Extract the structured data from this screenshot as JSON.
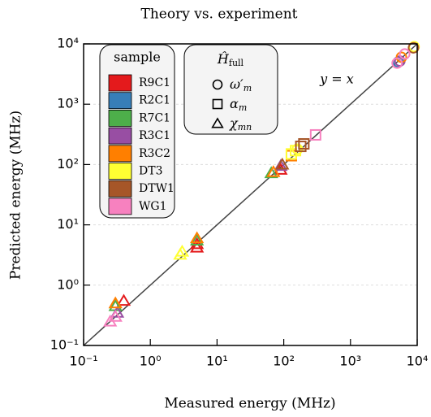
{
  "chart_data": {
    "type": "scatter",
    "title": "Theory vs. experiment",
    "x_label": "Measured energy (MHz)",
    "y_label": "Predicted energy (MHz)",
    "xlim": [
      0.1,
      10000
    ],
    "ylim": [
      0.1,
      10000
    ],
    "log_x": true,
    "log_y": true,
    "grid": true,
    "xticks": [
      {
        "value": 0.1,
        "label": "10⁻¹"
      },
      {
        "value": 1,
        "label": "10⁰"
      },
      {
        "value": 10,
        "label": "10¹"
      },
      {
        "value": 100,
        "label": "10²"
      },
      {
        "value": 1000,
        "label": "10³"
      },
      {
        "value": 10000,
        "label": "10⁴"
      }
    ],
    "yticks": [
      {
        "value": 0.1,
        "label": "10⁻¹"
      },
      {
        "value": 1,
        "label": "10⁰"
      },
      {
        "value": 10,
        "label": "10¹"
      },
      {
        "value": 100,
        "label": "10²"
      },
      {
        "value": 1000,
        "label": "10³"
      },
      {
        "value": 10000,
        "label": "10⁴"
      }
    ],
    "annotation": "y = x",
    "legend_title": "sample",
    "marker_legend": {
      "title": "Ĥ",
      "title_sub": "full",
      "items": [
        {
          "marker": "circle",
          "label": "ω′",
          "sub": "m"
        },
        {
          "marker": "square",
          "label": "α",
          "sub": "m"
        },
        {
          "marker": "triangle",
          "label": "χ",
          "sub": "mn"
        }
      ]
    },
    "series": [
      {
        "name": "R9C1",
        "color": "#e41a1c",
        "x": [
          0.4,
          5,
          90,
          5
        ],
        "values": [
          0.55,
          4.8,
          82,
          4.2
        ],
        "markers": [
          "triangle",
          "triangle",
          "triangle",
          "triangle"
        ]
      },
      {
        "name": "R2C1",
        "color": "#377eb8",
        "x": [
          5200
        ],
        "values": [
          5000
        ],
        "markers": [
          "circle"
        ]
      },
      {
        "name": "R7C1",
        "color": "#4daf4a",
        "x": [
          0.3,
          5,
          65
        ],
        "values": [
          0.45,
          5.5,
          72
        ],
        "markers": [
          "triangle",
          "triangle",
          "triangle"
        ]
      },
      {
        "name": "R3C1",
        "color": "#984ea3",
        "x": [
          5500,
          0.32,
          90
        ],
        "values": [
          5200,
          0.35,
          95
        ],
        "markers": [
          "circle",
          "triangle",
          "triangle"
        ]
      },
      {
        "name": "R3C2",
        "color": "#ff7f00",
        "x": [
          0.3,
          5,
          70,
          5800,
          130
        ],
        "values": [
          0.5,
          6,
          75,
          6000,
          140
        ],
        "markers": [
          "triangle",
          "triangle",
          "triangle",
          "circle",
          "square"
        ]
      },
      {
        "name": "DT3",
        "color": "#ffff33",
        "x": [
          2.8,
          3,
          130,
          150,
          9000,
          160
        ],
        "values": [
          3.2,
          3.6,
          150,
          170,
          9000,
          180
        ],
        "markers": [
          "triangle",
          "triangle",
          "square",
          "square",
          "circle",
          "circle"
        ]
      },
      {
        "name": "DTW1",
        "color": "#a65628",
        "x": [
          180,
          200,
          8800,
          95
        ],
        "values": [
          200,
          220,
          8600,
          100
        ],
        "markers": [
          "square",
          "square",
          "circle",
          "triangle"
        ]
      },
      {
        "name": "WG1",
        "color": "#f781bf",
        "x": [
          0.25,
          0.3,
          300,
          5000,
          6500
        ],
        "values": [
          0.25,
          0.3,
          310,
          4800,
          6800
        ],
        "markers": [
          "triangle",
          "triangle",
          "square",
          "circle",
          "circle"
        ]
      }
    ]
  }
}
